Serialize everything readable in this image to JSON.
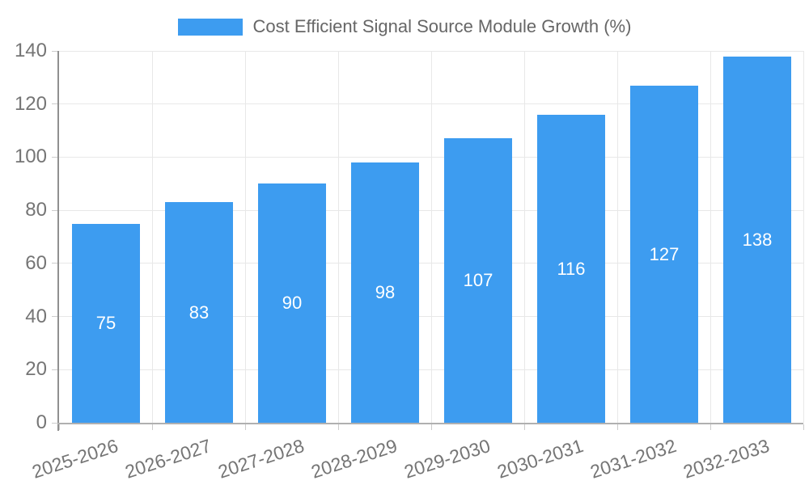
{
  "legend": {
    "label": "Cost Efficient Signal Source Module Growth (%)"
  },
  "chart_data": {
    "type": "bar",
    "title": "Cost Efficient Signal Source Module Growth (%)",
    "categories": [
      "2025-2026",
      "2026-2027",
      "2027-2028",
      "2028-2029",
      "2029-2030",
      "2030-2031",
      "2031-2032",
      "2032-2033"
    ],
    "values": [
      75,
      83,
      90,
      98,
      107,
      116,
      127,
      138
    ],
    "series": [
      {
        "name": "Cost Efficient Signal Source Module Growth (%)",
        "values": [
          75,
          83,
          90,
          98,
          107,
          116,
          127,
          138
        ]
      }
    ],
    "xlabel": "",
    "ylabel": "",
    "ylim": [
      0,
      140
    ],
    "yticks": [
      0,
      20,
      40,
      60,
      80,
      100,
      120,
      140
    ],
    "grid": true,
    "grid_vertical": true,
    "legend_position": "top-center",
    "value_labels": "inside-center",
    "xlabel_rotation_deg": -18,
    "colors": {
      "bar": "#3d9cf0",
      "value_label_text": "#ffffff",
      "grid_line": "#e8e8e8",
      "y_axis_line": "#909090",
      "x_axis_line": "#b0b0b0",
      "tick_mark": "#cccccc",
      "tick_label_text": "#757575",
      "legend_text": "#666666"
    }
  }
}
